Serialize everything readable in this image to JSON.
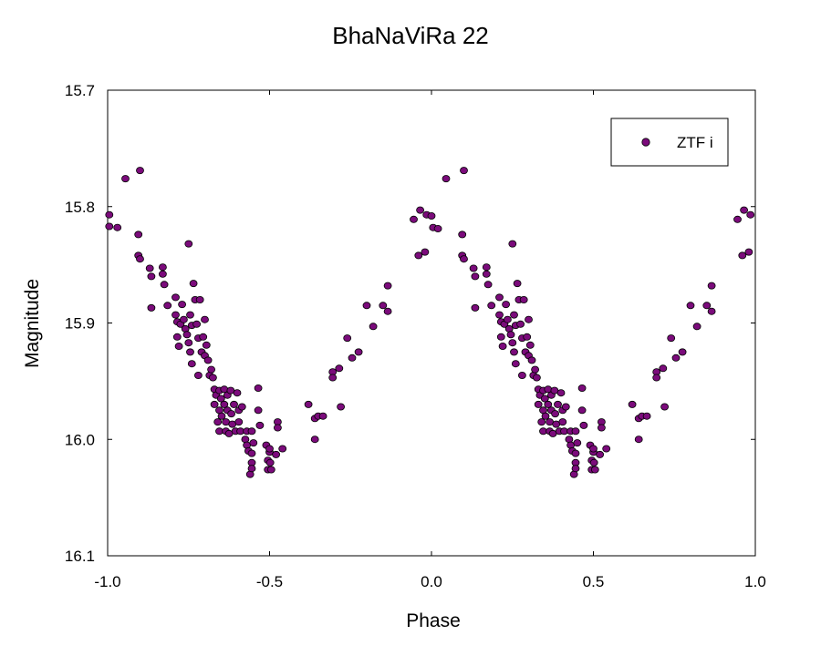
{
  "chart_data": {
    "type": "scatter",
    "title": "BhaNaViRa 22",
    "xlabel": "Phase",
    "ylabel": "Magnitude",
    "xlim": [
      -1.0,
      1.0
    ],
    "ylim": [
      15.7,
      16.1
    ],
    "y_inverted": true,
    "xticks": [
      "-1.0",
      "-0.5",
      "0.0",
      "0.5",
      "1.0"
    ],
    "yticks": [
      "15.7",
      "15.8",
      "15.9",
      "16.0",
      "16.1"
    ],
    "legend": {
      "position": "top-right",
      "entries": [
        "ZTF i"
      ]
    },
    "marker_color": "#7b0b7b",
    "series": [
      {
        "name": "ZTF i",
        "points": [
          [
            -0.995,
            15.807
          ],
          [
            -0.995,
            15.817
          ],
          [
            -0.97,
            15.818
          ],
          [
            -0.945,
            15.776
          ],
          [
            -0.9,
            15.769
          ],
          [
            -0.905,
            15.842
          ],
          [
            -0.9,
            15.845
          ],
          [
            -0.905,
            15.824
          ],
          [
            -0.87,
            15.853
          ],
          [
            -0.865,
            15.86
          ],
          [
            -0.865,
            15.887
          ],
          [
            -0.83,
            15.852
          ],
          [
            -0.83,
            15.858
          ],
          [
            -0.825,
            15.867
          ],
          [
            -0.815,
            15.885
          ],
          [
            -0.79,
            15.878
          ],
          [
            -0.79,
            15.893
          ],
          [
            -0.785,
            15.899
          ],
          [
            -0.785,
            15.912
          ],
          [
            -0.78,
            15.92
          ],
          [
            -0.775,
            15.901
          ],
          [
            -0.77,
            15.884
          ],
          [
            -0.765,
            15.897
          ],
          [
            -0.76,
            15.905
          ],
          [
            -0.755,
            15.91
          ],
          [
            -0.75,
            15.832
          ],
          [
            -0.75,
            15.917
          ],
          [
            -0.745,
            15.893
          ],
          [
            -0.745,
            15.925
          ],
          [
            -0.74,
            15.902
          ],
          [
            -0.74,
            15.935
          ],
          [
            -0.735,
            15.866
          ],
          [
            -0.73,
            15.88
          ],
          [
            -0.725,
            15.901
          ],
          [
            -0.72,
            15.913
          ],
          [
            -0.72,
            15.945
          ],
          [
            -0.715,
            15.88
          ],
          [
            -0.71,
            15.925
          ],
          [
            -0.705,
            15.912
          ],
          [
            -0.7,
            15.928
          ],
          [
            -0.7,
            15.897
          ],
          [
            -0.695,
            15.919
          ],
          [
            -0.69,
            15.932
          ],
          [
            -0.685,
            15.945
          ],
          [
            -0.68,
            15.94
          ],
          [
            -0.675,
            15.947
          ],
          [
            -0.67,
            15.957
          ],
          [
            -0.67,
            15.97
          ],
          [
            -0.665,
            15.962
          ],
          [
            -0.66,
            15.985
          ],
          [
            -0.655,
            15.958
          ],
          [
            -0.655,
            15.975
          ],
          [
            -0.655,
            15.993
          ],
          [
            -0.65,
            15.965
          ],
          [
            -0.648,
            15.98
          ],
          [
            -0.64,
            15.957
          ],
          [
            -0.64,
            15.97
          ],
          [
            -0.635,
            15.985
          ],
          [
            -0.635,
            15.993
          ],
          [
            -0.63,
            15.975
          ],
          [
            -0.63,
            15.962
          ],
          [
            -0.625,
            15.995
          ],
          [
            -0.62,
            15.958
          ],
          [
            -0.618,
            15.978
          ],
          [
            -0.615,
            15.987
          ],
          [
            -0.61,
            15.97
          ],
          [
            -0.605,
            15.993
          ],
          [
            -0.6,
            15.96
          ],
          [
            -0.595,
            15.975
          ],
          [
            -0.595,
            15.985
          ],
          [
            -0.59,
            15.993
          ],
          [
            -0.585,
            15.972
          ],
          [
            -0.575,
            16.0
          ],
          [
            -0.57,
            15.993
          ],
          [
            -0.57,
            16.005
          ],
          [
            -0.565,
            16.01
          ],
          [
            -0.56,
            16.03
          ],
          [
            -0.555,
            16.02
          ],
          [
            -0.555,
            16.025
          ],
          [
            -0.555,
            16.012
          ],
          [
            -0.555,
            15.993
          ],
          [
            -0.55,
            16.003
          ],
          [
            -0.535,
            15.956
          ],
          [
            -0.535,
            15.975
          ],
          [
            -0.53,
            15.988
          ],
          [
            -0.51,
            16.005
          ],
          [
            -0.505,
            16.018
          ],
          [
            -0.505,
            16.026
          ],
          [
            -0.5,
            16.011
          ],
          [
            -0.498,
            16.02
          ],
          [
            -0.5,
            16.008
          ],
          [
            -0.495,
            16.026
          ],
          [
            -0.48,
            16.013
          ],
          [
            -0.475,
            15.985
          ],
          [
            -0.475,
            15.99
          ],
          [
            -0.46,
            16.008
          ],
          [
            -0.38,
            15.97
          ],
          [
            -0.36,
            15.982
          ],
          [
            -0.36,
            16.0
          ],
          [
            -0.35,
            15.98
          ],
          [
            -0.335,
            15.98
          ],
          [
            -0.305,
            15.942
          ],
          [
            -0.305,
            15.947
          ],
          [
            -0.285,
            15.939
          ],
          [
            -0.28,
            15.972
          ],
          [
            -0.26,
            15.913
          ],
          [
            -0.245,
            15.93
          ],
          [
            -0.225,
            15.925
          ],
          [
            -0.2,
            15.885
          ],
          [
            -0.18,
            15.903
          ],
          [
            -0.15,
            15.885
          ],
          [
            -0.135,
            15.89
          ],
          [
            -0.135,
            15.868
          ],
          [
            -0.055,
            15.811
          ],
          [
            -0.04,
            15.842
          ],
          [
            -0.035,
            15.803
          ],
          [
            -0.02,
            15.839
          ],
          [
            -0.015,
            15.807
          ],
          [
            0.0,
            15.808
          ],
          [
            0.005,
            15.818
          ],
          [
            0.02,
            15.819
          ],
          [
            0.045,
            15.776
          ],
          [
            0.1,
            15.769
          ],
          [
            0.095,
            15.842
          ],
          [
            0.1,
            15.845
          ],
          [
            0.095,
            15.824
          ],
          [
            0.13,
            15.853
          ],
          [
            0.135,
            15.86
          ],
          [
            0.135,
            15.887
          ],
          [
            0.17,
            15.852
          ],
          [
            0.17,
            15.858
          ],
          [
            0.175,
            15.867
          ],
          [
            0.185,
            15.885
          ],
          [
            0.21,
            15.878
          ],
          [
            0.21,
            15.893
          ],
          [
            0.215,
            15.899
          ],
          [
            0.215,
            15.912
          ],
          [
            0.22,
            15.92
          ],
          [
            0.225,
            15.901
          ],
          [
            0.23,
            15.884
          ],
          [
            0.235,
            15.897
          ],
          [
            0.24,
            15.905
          ],
          [
            0.245,
            15.91
          ],
          [
            0.25,
            15.832
          ],
          [
            0.25,
            15.917
          ],
          [
            0.255,
            15.893
          ],
          [
            0.255,
            15.925
          ],
          [
            0.26,
            15.902
          ],
          [
            0.26,
            15.935
          ],
          [
            0.265,
            15.866
          ],
          [
            0.27,
            15.88
          ],
          [
            0.275,
            15.901
          ],
          [
            0.28,
            15.913
          ],
          [
            0.28,
            15.945
          ],
          [
            0.285,
            15.88
          ],
          [
            0.29,
            15.925
          ],
          [
            0.295,
            15.912
          ],
          [
            0.3,
            15.928
          ],
          [
            0.3,
            15.897
          ],
          [
            0.305,
            15.919
          ],
          [
            0.31,
            15.932
          ],
          [
            0.315,
            15.945
          ],
          [
            0.32,
            15.94
          ],
          [
            0.325,
            15.947
          ],
          [
            0.33,
            15.957
          ],
          [
            0.33,
            15.97
          ],
          [
            0.335,
            15.962
          ],
          [
            0.34,
            15.985
          ],
          [
            0.345,
            15.958
          ],
          [
            0.345,
            15.975
          ],
          [
            0.345,
            15.993
          ],
          [
            0.35,
            15.965
          ],
          [
            0.352,
            15.98
          ],
          [
            0.36,
            15.957
          ],
          [
            0.36,
            15.97
          ],
          [
            0.365,
            15.985
          ],
          [
            0.365,
            15.993
          ],
          [
            0.37,
            15.975
          ],
          [
            0.37,
            15.962
          ],
          [
            0.375,
            15.995
          ],
          [
            0.38,
            15.958
          ],
          [
            0.382,
            15.978
          ],
          [
            0.385,
            15.987
          ],
          [
            0.39,
            15.97
          ],
          [
            0.395,
            15.993
          ],
          [
            0.4,
            15.96
          ],
          [
            0.405,
            15.975
          ],
          [
            0.405,
            15.985
          ],
          [
            0.41,
            15.993
          ],
          [
            0.415,
            15.972
          ],
          [
            0.425,
            16.0
          ],
          [
            0.43,
            15.993
          ],
          [
            0.43,
            16.005
          ],
          [
            0.435,
            16.01
          ],
          [
            0.44,
            16.03
          ],
          [
            0.445,
            16.02
          ],
          [
            0.445,
            16.025
          ],
          [
            0.445,
            16.012
          ],
          [
            0.445,
            15.993
          ],
          [
            0.45,
            16.003
          ],
          [
            0.465,
            15.956
          ],
          [
            0.465,
            15.975
          ],
          [
            0.47,
            15.988
          ],
          [
            0.49,
            16.005
          ],
          [
            0.495,
            16.018
          ],
          [
            0.495,
            16.026
          ],
          [
            0.5,
            16.011
          ],
          [
            0.502,
            16.02
          ],
          [
            0.5,
            16.008
          ],
          [
            0.505,
            16.026
          ],
          [
            0.52,
            16.013
          ],
          [
            0.525,
            15.985
          ],
          [
            0.525,
            15.99
          ],
          [
            0.54,
            16.008
          ],
          [
            0.62,
            15.97
          ],
          [
            0.64,
            15.982
          ],
          [
            0.64,
            16.0
          ],
          [
            0.65,
            15.98
          ],
          [
            0.665,
            15.98
          ],
          [
            0.695,
            15.942
          ],
          [
            0.695,
            15.947
          ],
          [
            0.715,
            15.939
          ],
          [
            0.72,
            15.972
          ],
          [
            0.74,
            15.913
          ],
          [
            0.755,
            15.93
          ],
          [
            0.775,
            15.925
          ],
          [
            0.8,
            15.885
          ],
          [
            0.82,
            15.903
          ],
          [
            0.85,
            15.885
          ],
          [
            0.865,
            15.89
          ],
          [
            0.865,
            15.868
          ],
          [
            0.945,
            15.811
          ],
          [
            0.96,
            15.842
          ],
          [
            0.965,
            15.803
          ],
          [
            0.98,
            15.839
          ],
          [
            0.985,
            15.807
          ]
        ]
      }
    ]
  }
}
